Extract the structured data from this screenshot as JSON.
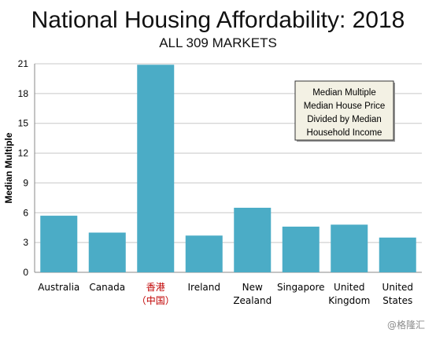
{
  "chart_data": {
    "type": "bar",
    "title": "National Housing Affordability: 2018",
    "subtitle": "ALL 309 MARKETS",
    "ylabel": "Median Multiple",
    "xlabel": "",
    "ylim": [
      0,
      21
    ],
    "yticks": [
      0,
      3,
      6,
      9,
      12,
      15,
      18,
      21
    ],
    "grid": true,
    "categories": [
      {
        "lines": [
          "Australia"
        ],
        "color": "#000000"
      },
      {
        "lines": [
          "Canada"
        ],
        "color": "#000000"
      },
      {
        "lines": [
          "香港",
          "（中国）"
        ],
        "color": "#c00000"
      },
      {
        "lines": [
          "Ireland"
        ],
        "color": "#000000"
      },
      {
        "lines": [
          "New",
          "Zealand"
        ],
        "color": "#000000"
      },
      {
        "lines": [
          "Singapore"
        ],
        "color": "#000000"
      },
      {
        "lines": [
          "United",
          "Kingdom"
        ],
        "color": "#000000"
      },
      {
        "lines": [
          "United",
          "States"
        ],
        "color": "#000000"
      }
    ],
    "values": [
      5.7,
      4.0,
      20.9,
      3.7,
      6.5,
      4.6,
      4.8,
      3.5
    ],
    "bar_color": "#4bacc6",
    "annotation": [
      "Median Multiple",
      "Median House Price",
      "Divided by Median",
      "Household Income"
    ],
    "annotation_bg": "#f3f1e4"
  },
  "watermark": "@格隆汇"
}
